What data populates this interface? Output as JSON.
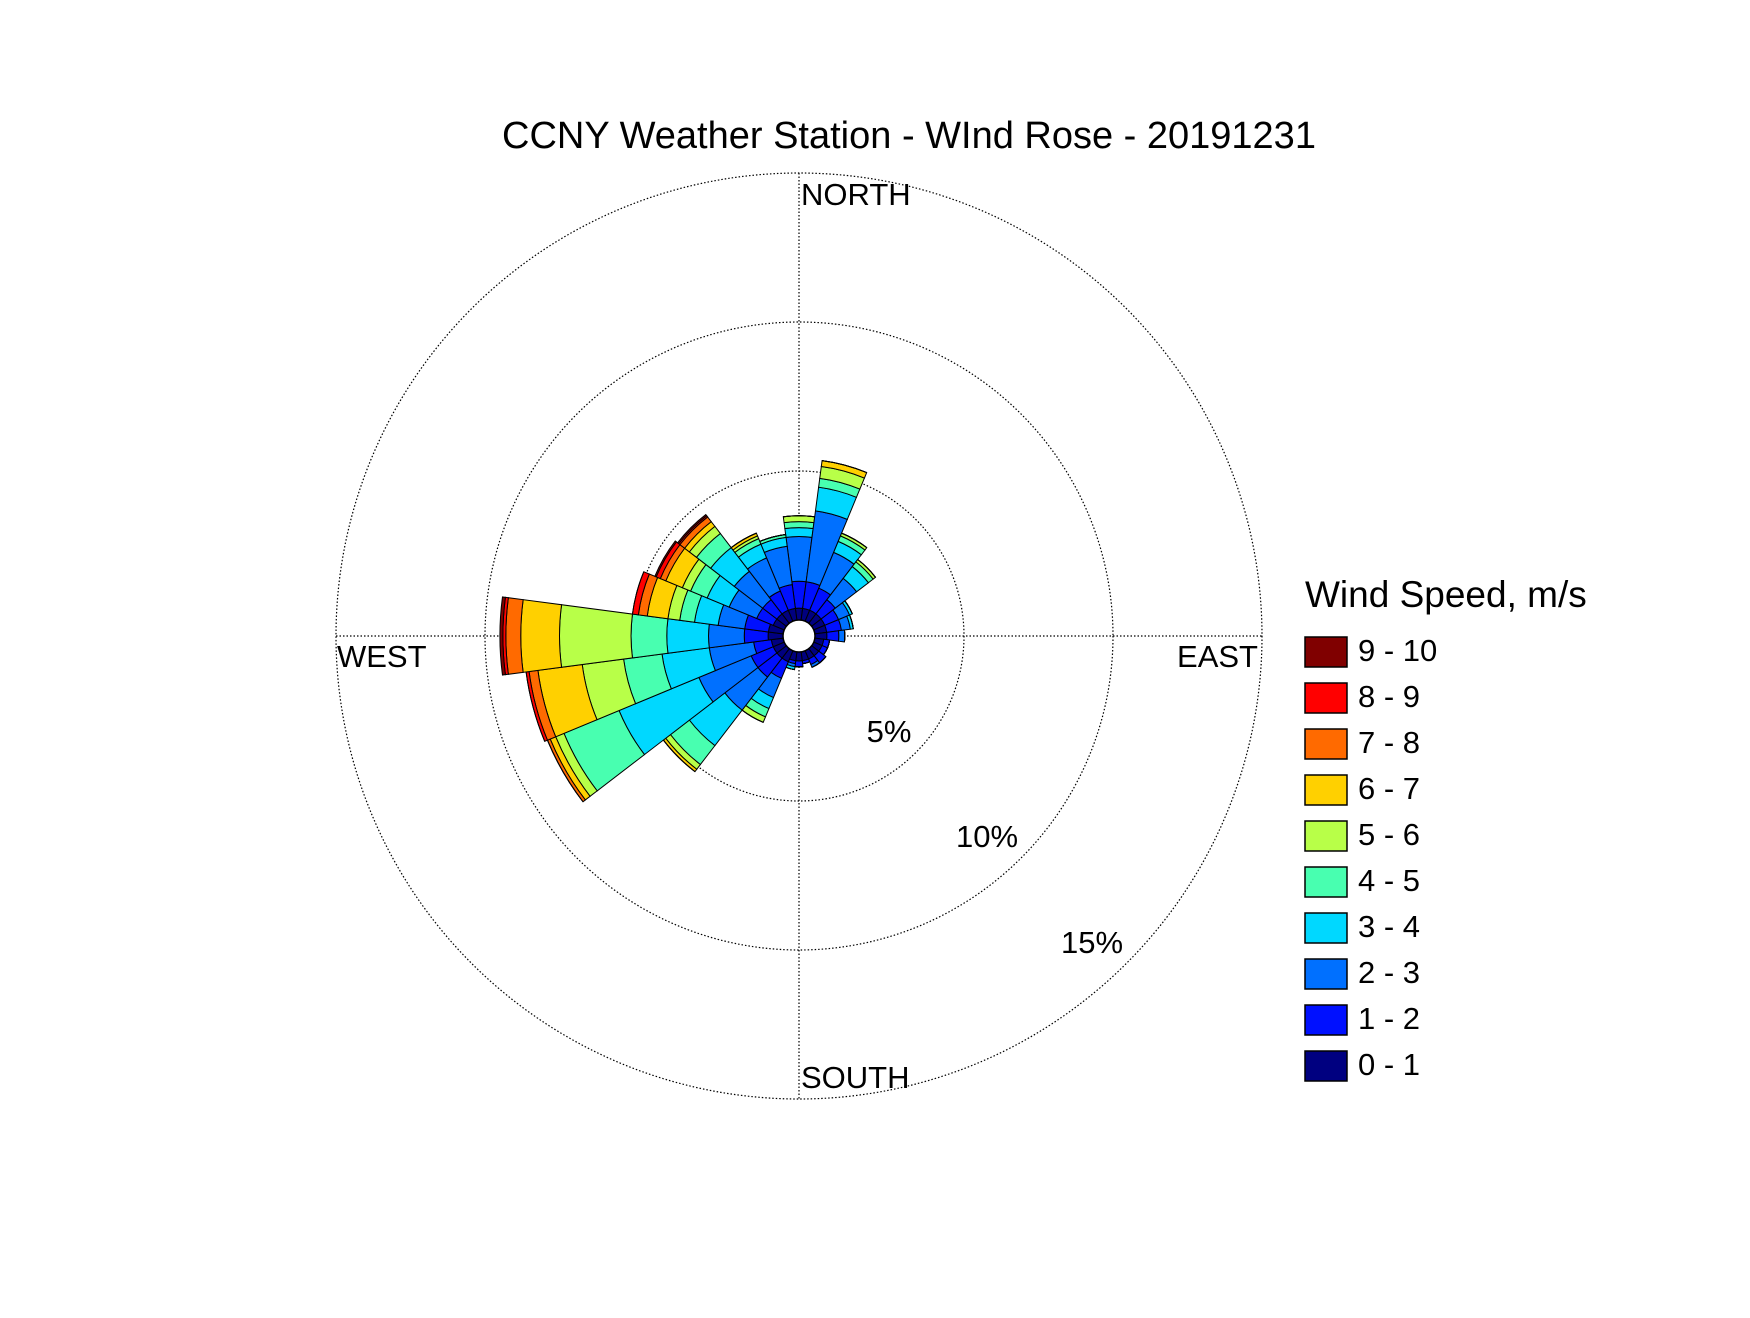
{
  "chart_data": {
    "type": "windrose",
    "title": "CCNY Weather Station - WInd Rose - 20191231",
    "direction_labels": [
      "NORTH",
      "EAST",
      "SOUTH",
      "WEST"
    ],
    "categories": [
      null,
      null,
      null,
      null,
      null,
      null,
      null,
      null,
      null,
      null,
      null,
      null,
      null,
      null,
      null,
      null,
      null,
      null,
      null,
      null,
      null,
      null,
      null,
      null
    ],
    "rlim": [
      0,
      15
    ],
    "rticks": [
      {
        "value": 5,
        "label": "5%"
      },
      {
        "value": 10,
        "label": "10%"
      },
      {
        "value": 15,
        "label": "15%"
      }
    ],
    "legend_title": "Wind Speed, m/s",
    "series": [
      {
        "name": "0 - 1",
        "color": "#000080",
        "values": [
          0.4,
          0.4,
          0.4,
          0.4,
          0.4,
          0.4,
          0.4,
          0.3,
          0.3,
          0.3,
          0.3,
          0.3,
          0.3,
          0.3,
          0.4,
          0.4,
          0.4,
          0.4,
          0.5,
          0.5,
          0.4,
          0.4,
          0.4,
          0.4
        ]
      },
      {
        "name": "1 - 2",
        "color": "#0010ff",
        "values": [
          0.9,
          0.9,
          0.8,
          0.6,
          0.5,
          0.5,
          0.4,
          0.2,
          0.2,
          0.3,
          0.2,
          0.1,
          0.2,
          0.1,
          0.6,
          0.8,
          0.8,
          0.6,
          0.8,
          0.8,
          0.6,
          0.6,
          0.7,
          0.8
        ]
      },
      {
        "name": "2 - 3",
        "color": "#0070ff",
        "values": [
          1.5,
          2.4,
          1.3,
          0.9,
          0.4,
          0.3,
          0.2,
          0,
          0,
          0,
          0.1,
          0,
          0,
          0.1,
          0.7,
          1.4,
          1.9,
          1.5,
          1.2,
          0.9,
          1.0,
          1.2,
          1.2,
          1.3
        ]
      },
      {
        "name": "3 - 4",
        "color": "#00d8ff",
        "values": [
          0.3,
          0.8,
          0.4,
          0.5,
          0.1,
          0.1,
          0,
          0,
          0,
          0,
          0,
          0,
          0,
          0.1,
          0.4,
          1.5,
          2.9,
          1.6,
          1.4,
          0.8,
          0.8,
          1.0,
          0.5,
          0.3
        ]
      },
      {
        "name": "4 - 5",
        "color": "#48ffb0",
        "values": [
          0.2,
          0.3,
          0.2,
          0.2,
          0,
          0,
          0,
          0,
          0,
          0,
          0,
          0,
          0,
          0,
          0.3,
          0.8,
          2.0,
          1.3,
          1.2,
          0.5,
          0.6,
          0.6,
          0.2,
          0.1
        ]
      },
      {
        "name": "5 - 6",
        "color": "#b8ff48",
        "values": [
          0.2,
          0.4,
          0.1,
          0.1,
          0,
          0,
          0,
          0,
          0,
          0,
          0,
          0,
          0,
          0,
          0.2,
          0.2,
          0.3,
          1.4,
          2.4,
          0.4,
          0.3,
          0.3,
          0.1,
          0
        ]
      },
      {
        "name": "6 - 7",
        "color": "#ffd000",
        "values": [
          0,
          0.2,
          0,
          0,
          0,
          0,
          0,
          0,
          0,
          0,
          0,
          0,
          0,
          0,
          0,
          0.1,
          0.2,
          1.5,
          1.3,
          0.7,
          0.6,
          0.2,
          0.1,
          0
        ]
      },
      {
        "name": "7 - 8",
        "color": "#ff6a00",
        "values": [
          0,
          0,
          0,
          0,
          0,
          0,
          0,
          0,
          0,
          0,
          0,
          0,
          0,
          0,
          0,
          0,
          0.1,
          0.3,
          0.5,
          0.3,
          0.2,
          0.2,
          0,
          0
        ]
      },
      {
        "name": "8 - 9",
        "color": "#ff0000",
        "values": [
          0,
          0,
          0,
          0,
          0,
          0,
          0,
          0,
          0,
          0,
          0,
          0,
          0,
          0,
          0,
          0,
          0,
          0.1,
          0.1,
          0.2,
          0.15,
          0.05,
          0,
          0
        ]
      },
      {
        "name": "9 - 10",
        "color": "#800000",
        "values": [
          0,
          0,
          0,
          0,
          0,
          0,
          0,
          0,
          0,
          0,
          0,
          0,
          0,
          0,
          0,
          0,
          0,
          0,
          0.1,
          0,
          0.05,
          0.05,
          0,
          0
        ]
      }
    ]
  }
}
